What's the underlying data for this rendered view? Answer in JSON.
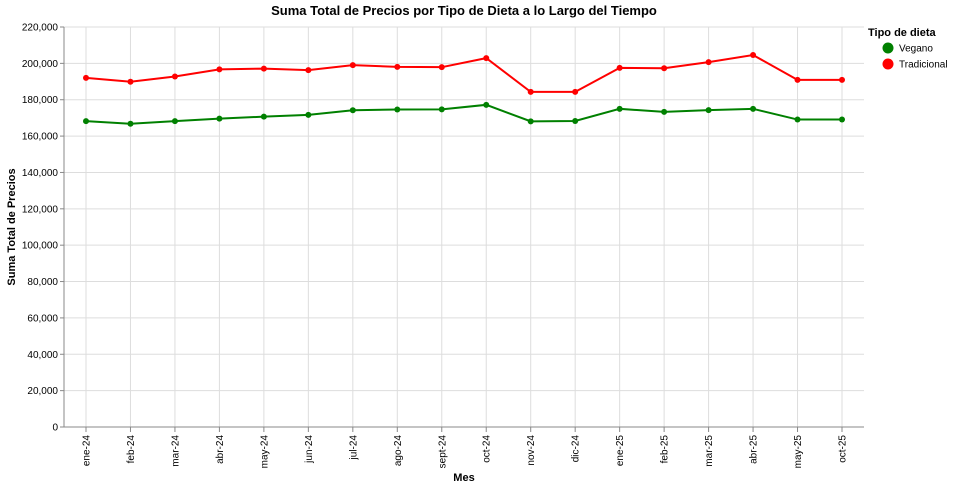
{
  "chart_data": {
    "type": "line",
    "title": "Suma Total de Precios por Tipo de Dieta a lo Largo del Tiempo",
    "xlabel": "Mes",
    "ylabel": "Suma Total de Precios",
    "categories": [
      "ene-24",
      "feb-24",
      "mar-24",
      "abr-24",
      "may-24",
      "jun-24",
      "jul-24",
      "ago-24",
      "sept-24",
      "oct-24",
      "nov-24",
      "dic-24",
      "ene-25",
      "feb-25",
      "mar-25",
      "abr-25",
      "may-25",
      "oct-25"
    ],
    "ylim": [
      0,
      220000
    ],
    "yticks": [
      0,
      20000,
      40000,
      60000,
      80000,
      100000,
      120000,
      140000,
      160000,
      180000,
      200000,
      220000
    ],
    "ytick_labels": [
      "0",
      "20,000",
      "40,000",
      "60,000",
      "80,000",
      "100,000",
      "120,000",
      "140,000",
      "160,000",
      "180,000",
      "200,000",
      "220,000"
    ],
    "grid": true,
    "legend": {
      "title": "Tipo de dieta",
      "position": "top-right"
    },
    "series": [
      {
        "name": "Vegano",
        "color": "#008000",
        "values": [
          168200,
          166800,
          168200,
          169600,
          170700,
          171700,
          174200,
          174600,
          174700,
          177200,
          168100,
          168300,
          175000,
          173300,
          174300,
          175000,
          169100,
          169100
        ]
      },
      {
        "name": "Tradicional",
        "color": "#ff0000",
        "values": [
          192000,
          189900,
          192800,
          196700,
          197100,
          196300,
          199000,
          198100,
          197900,
          202900,
          184300,
          184300,
          197500,
          197300,
          200700,
          204600,
          190900,
          190900
        ]
      }
    ]
  }
}
